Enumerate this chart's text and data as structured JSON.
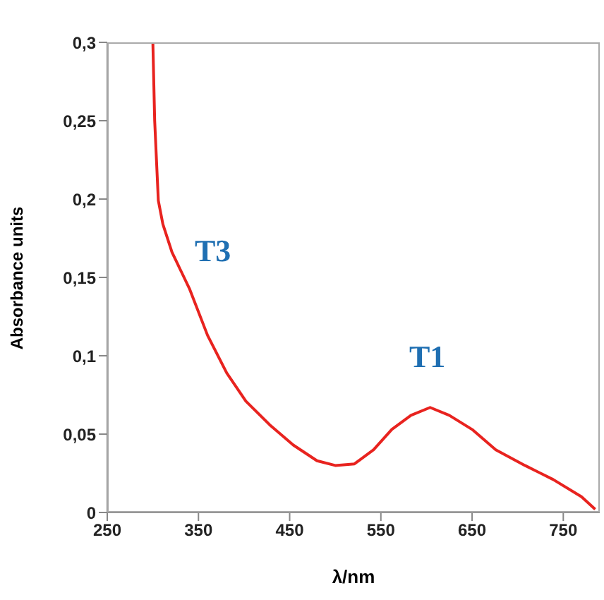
{
  "chart_data": {
    "type": "line",
    "xlabel": "λ/nm",
    "ylabel": "Absorbance units",
    "x": [
      300,
      302,
      306,
      311,
      321,
      340,
      360,
      381,
      402,
      428,
      454,
      480,
      500,
      521,
      542,
      562,
      583,
      604,
      625,
      650,
      676,
      708,
      739,
      770,
      785
    ],
    "series": [
      {
        "color": "#e8231f",
        "values": [
          0.3,
          0.25,
          0.199,
          0.184,
          0.166,
          0.143,
          0.113,
          0.089,
          0.071,
          0.056,
          0.043,
          0.033,
          0.03,
          0.031,
          0.04,
          0.053,
          0.062,
          0.067,
          0.062,
          0.053,
          0.04,
          0.03,
          0.021,
          0.01,
          0.002
        ]
      }
    ],
    "xlim": [
      250,
      790
    ],
    "xticks": [
      250,
      350,
      450,
      550,
      650,
      750
    ],
    "ylim": [
      0,
      0.3
    ],
    "yticks": [
      {
        "value": 0,
        "label": "0"
      },
      {
        "value": 0.05,
        "label": "0,05"
      },
      {
        "value": 0.1,
        "label": "0,1"
      },
      {
        "value": 0.15,
        "label": "0,15"
      },
      {
        "value": 0.2,
        "label": "0,2"
      },
      {
        "value": 0.25,
        "label": "0,25"
      },
      {
        "value": 0.3,
        "label": "0,3"
      }
    ],
    "annotations": [
      "T3",
      "T1"
    ],
    "grid": false,
    "legend": false,
    "marker": "none",
    "line_style": "solid"
  }
}
